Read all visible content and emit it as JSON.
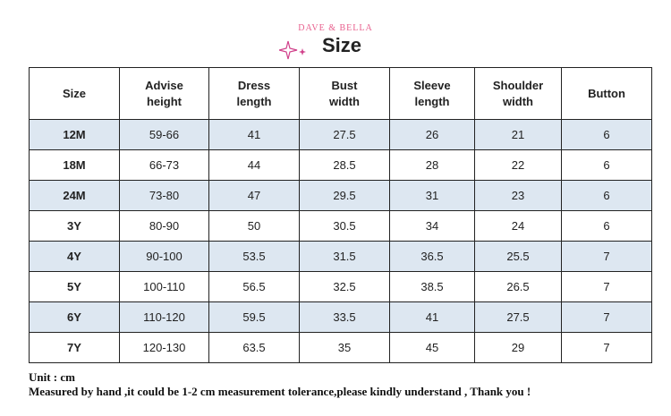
{
  "header": {
    "brand": "DAVE & BELLA",
    "title": "Size"
  },
  "table": {
    "columns": [
      "Size",
      "Advise\nheight",
      "Dress\nlength",
      "Bust\nwidth",
      "Sleeve\nlength",
      "Shoulder\nwidth",
      "Button"
    ],
    "rows": [
      [
        "12M",
        "59-66",
        "41",
        "27.5",
        "26",
        "21",
        "6"
      ],
      [
        "18M",
        "66-73",
        "44",
        "28.5",
        "28",
        "22",
        "6"
      ],
      [
        "24M",
        "73-80",
        "47",
        "29.5",
        "31",
        "23",
        "6"
      ],
      [
        "3Y",
        "80-90",
        "50",
        "30.5",
        "34",
        "24",
        "6"
      ],
      [
        "4Y",
        "90-100",
        "53.5",
        "31.5",
        "36.5",
        "25.5",
        "7"
      ],
      [
        "5Y",
        "100-110",
        "56.5",
        "32.5",
        "38.5",
        "26.5",
        "7"
      ],
      [
        "6Y",
        "110-120",
        "59.5",
        "33.5",
        "41",
        "27.5",
        "7"
      ],
      [
        "7Y",
        "120-130",
        "63.5",
        "35",
        "45",
        "29",
        "7"
      ]
    ]
  },
  "footer": {
    "unit": "Unit : cm",
    "note": "Measured by hand ,it could be 1-2 cm measurement tolerance,please kindly understand , Thank you !"
  }
}
